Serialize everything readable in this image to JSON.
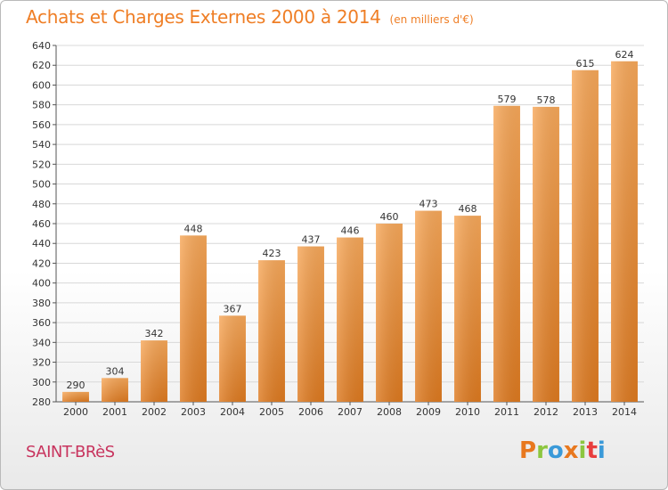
{
  "header": {
    "title": "Achats et Charges Externes 2000 à 2014",
    "unit": "(en milliers d'€)"
  },
  "footer": {
    "place": "SAINT-BRèS",
    "logo_letters": [
      "P",
      "r",
      "o",
      "x",
      "i",
      "t",
      "i"
    ]
  },
  "colors": {
    "title": "#ef7e25",
    "place": "#c8345e",
    "bar_light": "#f7a85a",
    "bar_dark": "#de7a20",
    "grid": "#d8d8d8",
    "logo": [
      "#e8781e",
      "#8cc63f",
      "#3a9ad9",
      "#e8781e",
      "#8cc63f",
      "#e83e3e",
      "#3a9ad9"
    ]
  },
  "chart_data": {
    "type": "bar",
    "categories": [
      "2000",
      "2001",
      "2002",
      "2003",
      "2004",
      "2005",
      "2006",
      "2007",
      "2008",
      "2009",
      "2010",
      "2011",
      "2012",
      "2013",
      "2014"
    ],
    "values": [
      290,
      304,
      342,
      448,
      367,
      423,
      437,
      446,
      460,
      473,
      468,
      579,
      578,
      615,
      624
    ],
    "ylim": [
      280,
      640
    ],
    "yticks": [
      280,
      300,
      320,
      340,
      360,
      380,
      400,
      420,
      440,
      460,
      480,
      500,
      520,
      540,
      560,
      580,
      600,
      620,
      640
    ],
    "grid": true
  }
}
